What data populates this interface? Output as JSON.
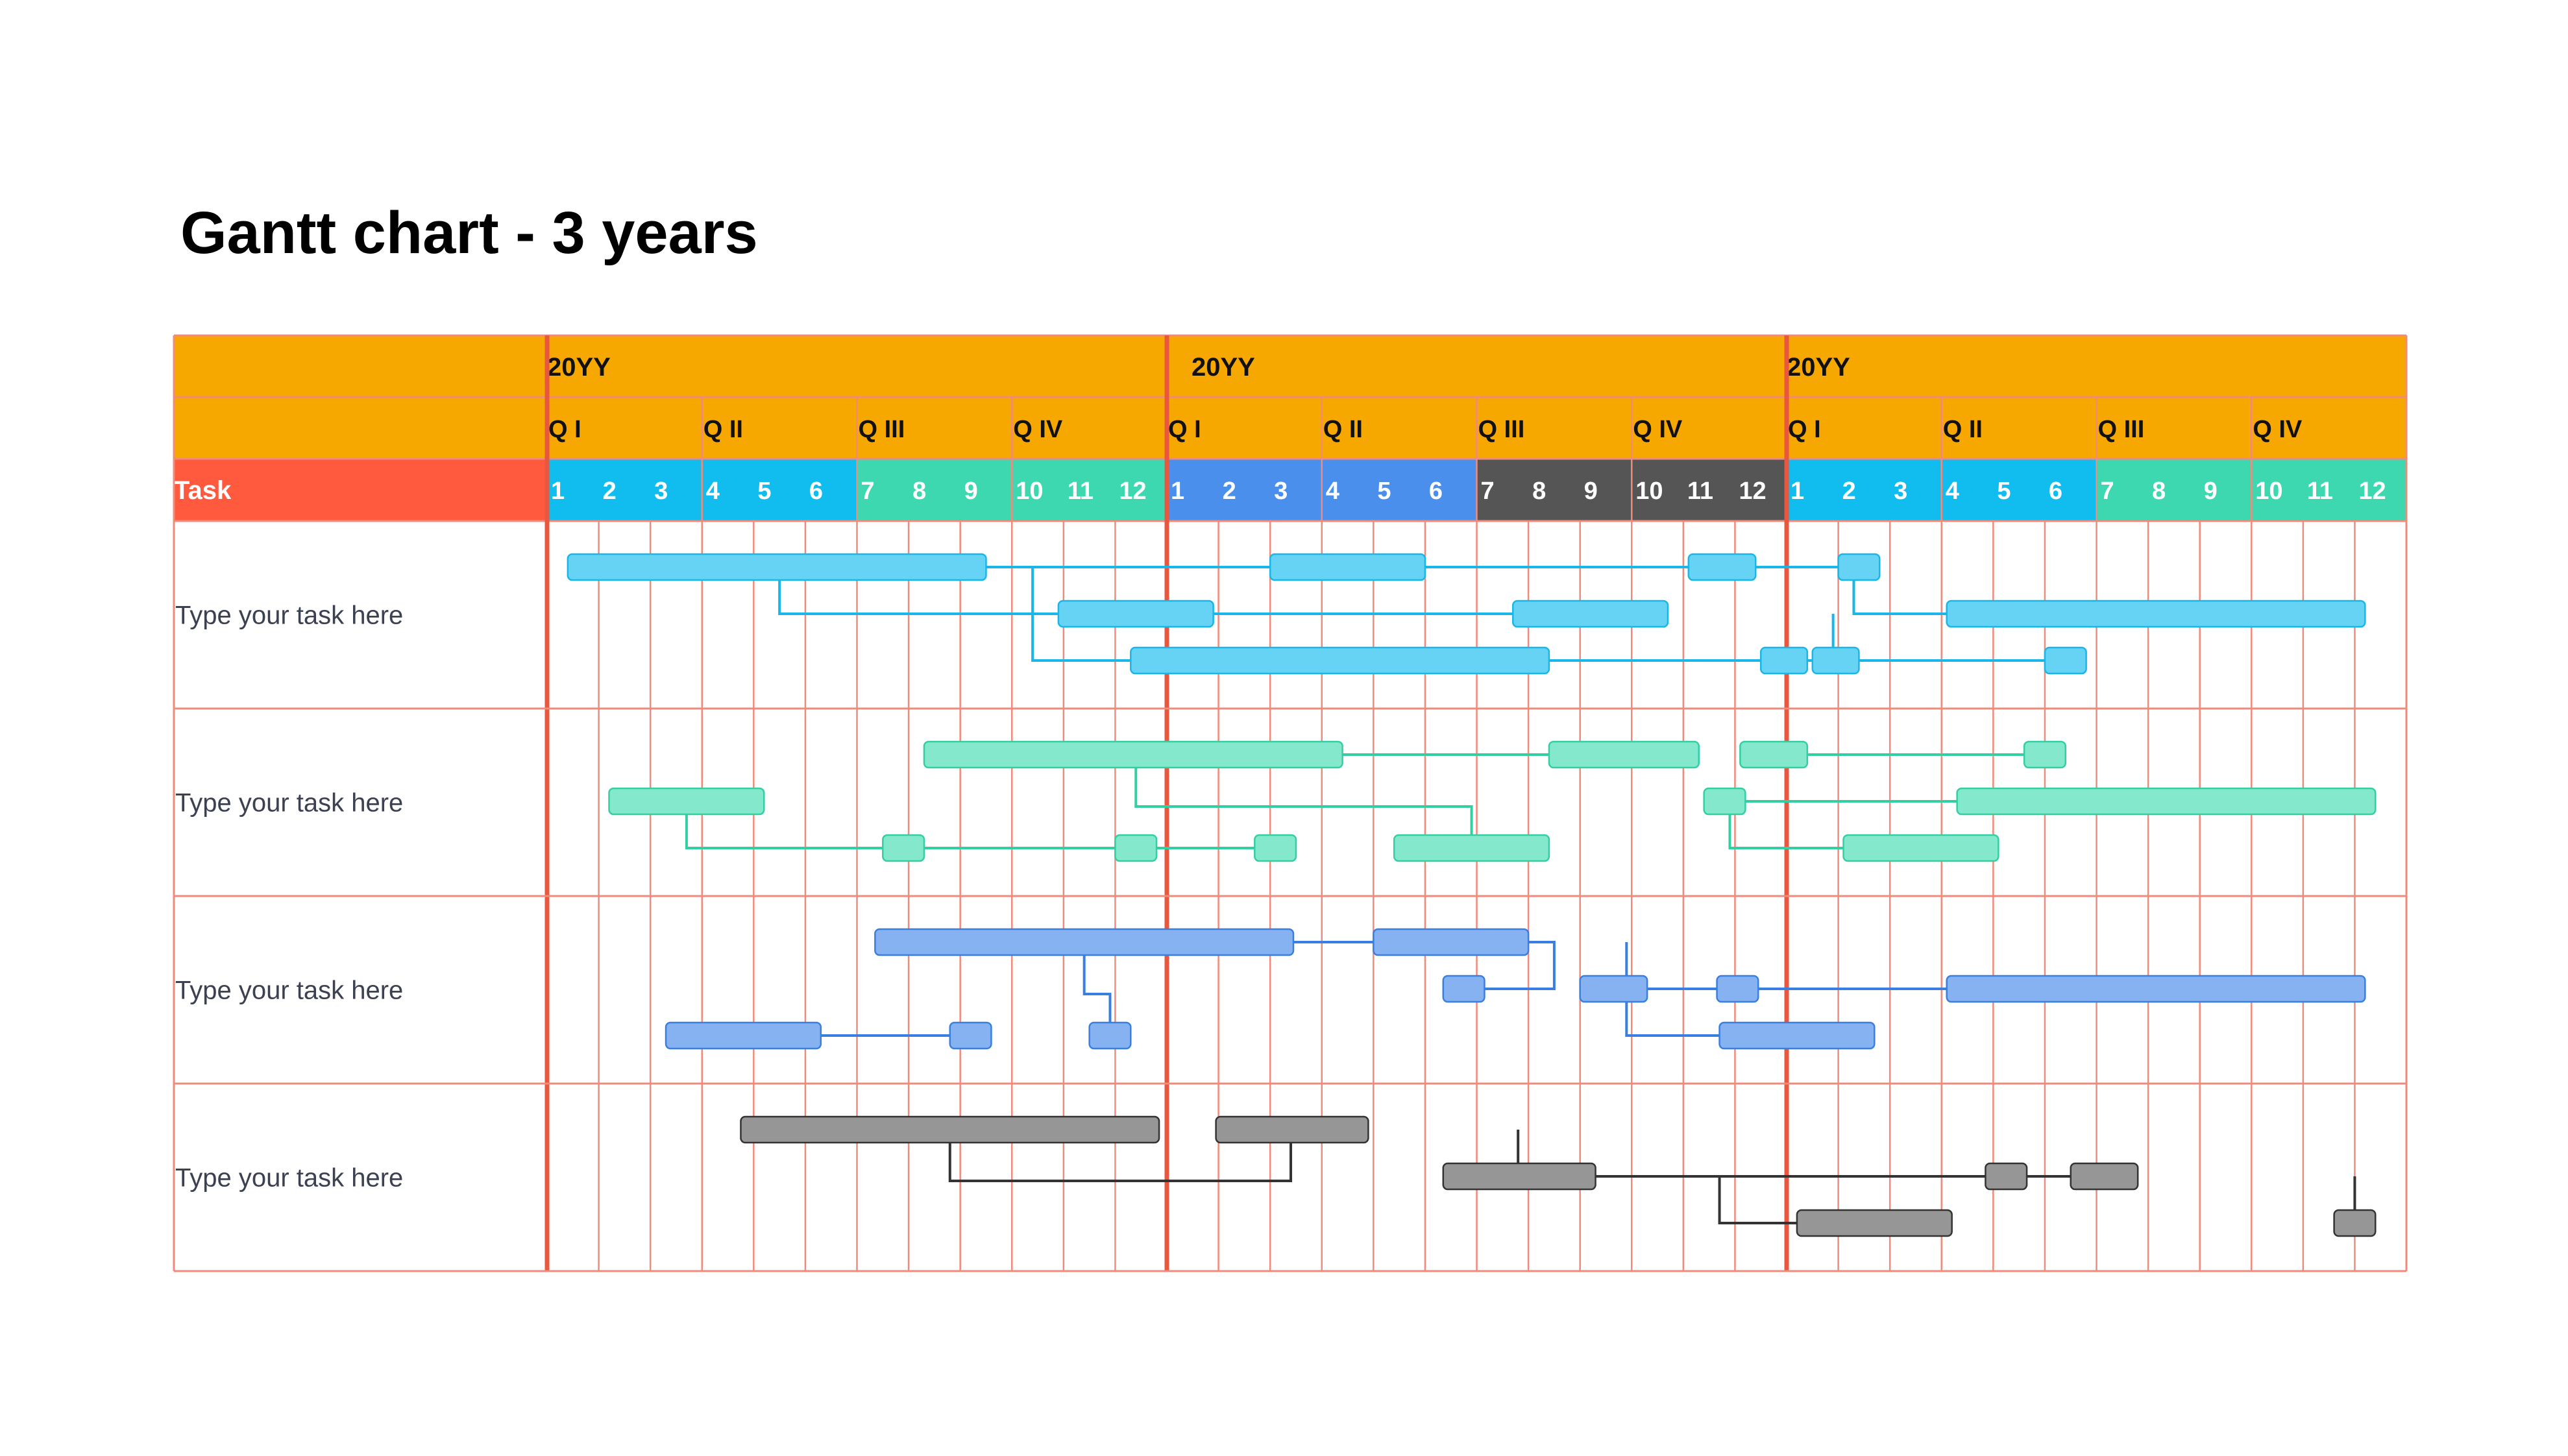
{
  "title": "Gantt chart - 3 years",
  "colors": {
    "header_orange": "#F7A800",
    "task_header_red": "#FF5A3D",
    "grid_line": "#F08B7C",
    "year_divider": "#E8573E",
    "month_cyan": "#10BDEE",
    "month_teal": "#3DD8B0",
    "month_blue": "#4A8FEC",
    "month_dark": "#555555",
    "bar_cyan": "#66D3F5",
    "bar_teal": "#84E8CD",
    "bar_blue": "#86B2F2",
    "bar_gray": "#969696",
    "link_cyan": "#1AB6E8",
    "link_teal": "#33CFA3",
    "link_blue": "#3A7FE0",
    "link_gray": "#333333"
  },
  "chart_data": {
    "type": "gantt",
    "title": "Gantt chart - 3 years",
    "task_header": "Task",
    "years": [
      {
        "label": "20YY",
        "quarters": [
          "Q I",
          "Q II",
          "Q III",
          "Q IV"
        ],
        "months": [
          "1",
          "2",
          "3",
          "4",
          "5",
          "6",
          "7",
          "8",
          "9",
          "10",
          "11",
          "12"
        ],
        "month_colors": [
          "month_cyan",
          "month_cyan",
          "month_cyan",
          "month_cyan",
          "month_cyan",
          "month_cyan",
          "month_teal",
          "month_teal",
          "month_teal",
          "month_teal",
          "month_teal",
          "month_teal"
        ]
      },
      {
        "label": "20YY",
        "quarters": [
          "Q I",
          "Q II",
          "Q III",
          "Q IV"
        ],
        "months": [
          "1",
          "2",
          "3",
          "4",
          "5",
          "6",
          "7",
          "8",
          "9",
          "10",
          "11",
          "12"
        ],
        "month_colors": [
          "month_blue",
          "month_blue",
          "month_blue",
          "month_blue",
          "month_blue",
          "month_blue",
          "month_dark",
          "month_dark",
          "month_dark",
          "month_dark",
          "month_dark",
          "month_dark"
        ]
      },
      {
        "label": "20YY",
        "quarters": [
          "Q I",
          "Q II",
          "Q III",
          "Q IV"
        ],
        "months": [
          "1",
          "2",
          "3",
          "4",
          "5",
          "6",
          "7",
          "8",
          "9",
          "10",
          "11",
          "12"
        ],
        "month_colors": [
          "month_cyan",
          "month_cyan",
          "month_cyan",
          "month_cyan",
          "month_cyan",
          "month_cyan",
          "month_teal",
          "month_teal",
          "month_teal",
          "month_teal",
          "month_teal",
          "month_teal"
        ]
      }
    ],
    "tasks": [
      {
        "label": "Type your task here",
        "bar_color": "bar_cyan",
        "link_color": "link_cyan",
        "bars": [
          {
            "id": "c1",
            "lane": 0,
            "start": 0.4,
            "end": 8.5
          },
          {
            "id": "c2",
            "lane": 0,
            "start": 14.0,
            "end": 17.0
          },
          {
            "id": "c3",
            "lane": 0,
            "start": 22.1,
            "end": 23.4
          },
          {
            "id": "c4",
            "lane": 0,
            "start": 25.0,
            "end": 25.8
          },
          {
            "id": "c5",
            "lane": 1,
            "start": 9.9,
            "end": 12.9
          },
          {
            "id": "c6",
            "lane": 1,
            "start": 18.7,
            "end": 21.7
          },
          {
            "id": "c7",
            "lane": 1,
            "start": 27.1,
            "end": 35.2
          },
          {
            "id": "c8",
            "lane": 2,
            "start": 11.3,
            "end": 19.4
          },
          {
            "id": "c9",
            "lane": 2,
            "start": 23.5,
            "end": 24.4
          },
          {
            "id": "c10",
            "lane": 2,
            "start": 24.5,
            "end": 25.4
          },
          {
            "id": "c11",
            "lane": 2,
            "start": 29.0,
            "end": 29.8
          }
        ],
        "links": [
          {
            "from": "c1",
            "to": "c2",
            "kind": "straight"
          },
          {
            "from": "c2",
            "to": "c3",
            "kind": "straight"
          },
          {
            "from": "c3",
            "to": "c4",
            "kind": "straight"
          },
          {
            "from": "c1",
            "to": "c5",
            "kind": "drop",
            "at": 4.5
          },
          {
            "from": "c5",
            "to": "c6",
            "kind": "straight"
          },
          {
            "from": "c6",
            "to": "c9",
            "kind": "drop",
            "at": 24.9
          },
          {
            "from": "c1",
            "to": "c8",
            "kind": "drop",
            "at": 9.4
          },
          {
            "from": "c8",
            "to": "c9",
            "kind": "straight"
          },
          {
            "from": "c10",
            "to": "c11",
            "kind": "straight"
          },
          {
            "from": "c4",
            "to": "c7",
            "kind": "drop",
            "at": 25.3
          }
        ]
      },
      {
        "label": "Type your task here",
        "bar_color": "bar_teal",
        "link_color": "link_teal",
        "bars": [
          {
            "id": "t1",
            "lane": 0,
            "start": 7.3,
            "end": 15.4
          },
          {
            "id": "t2",
            "lane": 0,
            "start": 19.4,
            "end": 22.3
          },
          {
            "id": "t3",
            "lane": 0,
            "start": 23.1,
            "end": 24.4
          },
          {
            "id": "t4",
            "lane": 0,
            "start": 28.6,
            "end": 29.4
          },
          {
            "id": "t5",
            "lane": 1,
            "start": 1.2,
            "end": 4.2
          },
          {
            "id": "t6",
            "lane": 1,
            "start": 22.4,
            "end": 23.2
          },
          {
            "id": "t7",
            "lane": 1,
            "start": 27.3,
            "end": 35.4
          },
          {
            "id": "t8",
            "lane": 2,
            "start": 6.5,
            "end": 7.3
          },
          {
            "id": "t9",
            "lane": 2,
            "start": 11.0,
            "end": 11.8
          },
          {
            "id": "t10",
            "lane": 2,
            "start": 13.7,
            "end": 14.5
          },
          {
            "id": "t11",
            "lane": 2,
            "start": 16.4,
            "end": 19.4
          },
          {
            "id": "t12",
            "lane": 2,
            "start": 25.1,
            "end": 28.1
          }
        ],
        "links": [
          {
            "from": "t1",
            "to": "t2",
            "kind": "straight"
          },
          {
            "from": "t3",
            "to": "t4",
            "kind": "straight"
          },
          {
            "from": "t1",
            "to": "t11",
            "kind": "drop",
            "at": 11.4,
            "hop_x": 17.9
          },
          {
            "from": "t5",
            "to": "t8",
            "kind": "drop",
            "at": 2.7
          },
          {
            "from": "t8",
            "to": "t9",
            "kind": "straight"
          },
          {
            "from": "t9",
            "to": "t10",
            "kind": "straight"
          },
          {
            "from": "t6",
            "to": "t7",
            "kind": "straight"
          },
          {
            "from": "t6",
            "to": "t12",
            "kind": "drop",
            "at": 22.9
          }
        ]
      },
      {
        "label": "Type your task here",
        "bar_color": "bar_blue",
        "link_color": "link_blue",
        "bars": [
          {
            "id": "b1",
            "lane": 0,
            "start": 6.35,
            "end": 14.45
          },
          {
            "id": "b2",
            "lane": 0,
            "start": 16.0,
            "end": 19.0
          },
          {
            "id": "b3",
            "lane": 1,
            "start": 17.35,
            "end": 18.15
          },
          {
            "id": "b4",
            "lane": 1,
            "start": 20.0,
            "end": 21.3
          },
          {
            "id": "b5",
            "lane": 1,
            "start": 22.65,
            "end": 23.45
          },
          {
            "id": "b6",
            "lane": 1,
            "start": 27.1,
            "end": 35.2
          },
          {
            "id": "b7",
            "lane": 2,
            "start": 2.3,
            "end": 5.3
          },
          {
            "id": "b8",
            "lane": 2,
            "start": 7.8,
            "end": 8.6
          },
          {
            "id": "b9",
            "lane": 2,
            "start": 10.5,
            "end": 11.3
          },
          {
            "id": "b10",
            "lane": 2,
            "start": 22.7,
            "end": 25.7
          }
        ],
        "links": [
          {
            "from": "b1",
            "to": "b2",
            "kind": "straight"
          },
          {
            "from": "b1",
            "to": "b9",
            "kind": "drop",
            "at": 10.4,
            "hop_x": 10.9
          },
          {
            "from": "b2",
            "to": "b3",
            "kind": "up",
            "at": 19.5
          },
          {
            "from": "b2",
            "to": "b4",
            "kind": "drop",
            "at": 20.9
          },
          {
            "from": "b4",
            "to": "b5",
            "kind": "straight"
          },
          {
            "from": "b5",
            "to": "b6",
            "kind": "straight"
          },
          {
            "from": "b4",
            "to": "b10",
            "kind": "drop",
            "at": 20.9
          },
          {
            "from": "b7",
            "to": "b8",
            "kind": "straight"
          }
        ]
      },
      {
        "label": "Type your task here",
        "bar_color": "bar_gray",
        "link_color": "link_gray",
        "bars": [
          {
            "id": "g1",
            "lane": 0,
            "start": 3.75,
            "end": 11.85
          },
          {
            "id": "g2",
            "lane": 0,
            "start": 12.95,
            "end": 15.9
          },
          {
            "id": "g3",
            "lane": 1,
            "start": 17.35,
            "end": 20.3
          },
          {
            "id": "g4",
            "lane": 1,
            "start": 27.85,
            "end": 28.65
          },
          {
            "id": "g5",
            "lane": 1,
            "start": 29.5,
            "end": 30.8
          },
          {
            "id": "g6",
            "lane": 2,
            "start": 24.2,
            "end": 27.2
          },
          {
            "id": "g7",
            "lane": 2,
            "start": 34.6,
            "end": 35.4
          }
        ],
        "links": [
          {
            "from": "g2",
            "to": "g3",
            "kind": "drop",
            "at": 18.8
          },
          {
            "from": "g1",
            "to": "g2",
            "kind": "under",
            "a": 7.8,
            "b": 14.4
          },
          {
            "from": "g3",
            "to": "g4",
            "kind": "straight"
          },
          {
            "from": "g4",
            "to": "g5",
            "kind": "straight"
          },
          {
            "from": "g5",
            "to": "g7",
            "kind": "drop",
            "at": 35.0
          },
          {
            "from": "g3",
            "to": "g6",
            "kind": "drop",
            "at": 22.7
          }
        ]
      }
    ]
  }
}
